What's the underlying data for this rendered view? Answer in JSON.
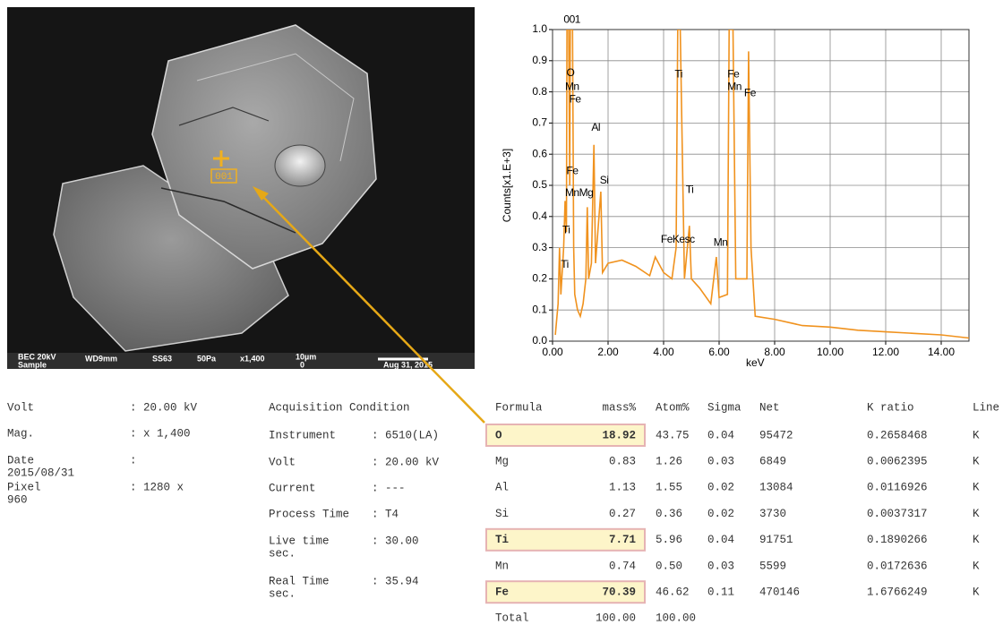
{
  "sem_image": {
    "marker_label": "001",
    "info_bar": [
      "BEC 20kV",
      "Sample",
      "WD9mm",
      "SS63",
      "50Pa",
      "x1,400",
      "10µm",
      "0",
      "Aug 31, 2015"
    ]
  },
  "chart_data": {
    "type": "line",
    "xlabel": "keV",
    "ylabel": "Counts[x1.E+3]",
    "color": "#f0921e",
    "grid": true,
    "xlim": [
      0,
      15
    ],
    "ylim": [
      0,
      1.0
    ],
    "xticks": [
      {
        "value": 0,
        "label": "0.00"
      },
      {
        "value": 2,
        "label": "2.00"
      },
      {
        "value": 4,
        "label": "4.00"
      },
      {
        "value": 6,
        "label": "6.00"
      },
      {
        "value": 8,
        "label": "8.00"
      },
      {
        "value": 10,
        "label": "10.00"
      },
      {
        "value": 12,
        "label": "12.00"
      },
      {
        "value": 14,
        "label": "14.00"
      }
    ],
    "yticks": [
      {
        "value": 0,
        "label": "0.0"
      },
      0.1,
      0.2,
      0.3,
      0.4,
      0.5,
      0.6,
      0.7,
      0.8,
      0.9,
      {
        "value": 1.0,
        "label": "1.0"
      }
    ],
    "x": [
      0.1,
      0.2,
      0.25,
      0.3,
      0.4,
      0.45,
      0.5,
      0.52,
      0.58,
      0.62,
      0.64,
      0.72,
      0.76,
      0.8,
      0.9,
      1.0,
      1.1,
      1.2,
      1.25,
      1.3,
      1.4,
      1.49,
      1.55,
      1.74,
      1.8,
      2.0,
      2.5,
      3.0,
      3.5,
      3.7,
      4.0,
      4.3,
      4.45,
      4.51,
      4.6,
      4.75,
      4.93,
      5.0,
      5.3,
      5.7,
      5.9,
      6.0,
      6.3,
      6.36,
      6.5,
      6.6,
      7.0,
      7.06,
      7.15,
      7.3,
      8.0,
      9.0,
      10.0,
      11.0,
      12.0,
      13.0,
      14.0,
      15.0
    ],
    "values": [
      0.02,
      0.12,
      0.3,
      0.15,
      0.3,
      0.45,
      0.35,
      1.0,
      1.0,
      0.5,
      1.0,
      1.0,
      0.3,
      0.15,
      0.1,
      0.08,
      0.12,
      0.2,
      0.43,
      0.2,
      0.25,
      0.63,
      0.25,
      0.48,
      0.22,
      0.25,
      0.26,
      0.24,
      0.21,
      0.27,
      0.22,
      0.2,
      0.3,
      1.0,
      1.0,
      0.2,
      0.37,
      0.2,
      0.17,
      0.12,
      0.27,
      0.14,
      0.15,
      1.0,
      1.0,
      0.2,
      0.2,
      0.93,
      0.3,
      0.08,
      0.07,
      0.05,
      0.045,
      0.035,
      0.03,
      0.025,
      0.02,
      0.01
    ],
    "annotations": [
      {
        "text": "001",
        "x": 0.4,
        "y": 1.03
      },
      {
        "text": "O",
        "x": 0.5,
        "y": 0.86
      },
      {
        "text": "Mn",
        "x": 0.45,
        "y": 0.815
      },
      {
        "text": "Fe",
        "x": 0.6,
        "y": 0.775
      },
      {
        "text": "Al",
        "x": 1.4,
        "y": 0.685
      },
      {
        "text": "Fe",
        "x": 0.5,
        "y": 0.545
      },
      {
        "text": "Si",
        "x": 1.7,
        "y": 0.515
      },
      {
        "text": "MnMg",
        "x": 0.45,
        "y": 0.475
      },
      {
        "text": "Ti",
        "x": 0.35,
        "y": 0.355
      },
      {
        "text": "Ti",
        "x": 0.3,
        "y": 0.245
      },
      {
        "text": "Ti",
        "x": 4.4,
        "y": 0.855
      },
      {
        "text": "Ti",
        "x": 4.8,
        "y": 0.485
      },
      {
        "text": "Fe",
        "x": 6.3,
        "y": 0.855
      },
      {
        "text": "Mn",
        "x": 6.3,
        "y": 0.815
      },
      {
        "text": "Fe",
        "x": 6.9,
        "y": 0.795
      },
      {
        "text": "FeKesc",
        "x": 3.9,
        "y": 0.325
      },
      {
        "text": "Mn",
        "x": 5.8,
        "y": 0.315
      }
    ]
  },
  "settings_table": {
    "rows": [
      [
        "Volt",
        ": 20.00 kV"
      ],
      [
        "Mag.",
        ": x 1,400"
      ],
      [
        "Date",
        ":"
      ],
      [
        "2015/08/31",
        ""
      ],
      [
        "Pixel",
        ": 1280 x"
      ],
      [
        "960",
        ""
      ]
    ]
  },
  "condition_table": {
    "title": "Acquisition Condition",
    "rows": [
      [
        "Instrument",
        ": 6510(LA)"
      ],
      [
        "Volt",
        ": 20.00 kV"
      ],
      [
        "Current",
        ": ---"
      ],
      [
        "Process Time",
        ": T4"
      ],
      [
        "Live time",
        ": 30.00"
      ],
      [
        "sec.",
        ""
      ],
      [
        "Real Time",
        ": 35.94"
      ],
      [
        "sec.",
        ""
      ]
    ]
  },
  "results_table": {
    "header": [
      "Formula",
      "mass%",
      "Atom%",
      "Sigma",
      "Net",
      "K ratio",
      "Line"
    ],
    "rows": [
      {
        "cells": [
          "O",
          "18.92",
          "43.75",
          "0.04",
          "95472",
          "0.2658468",
          "K"
        ],
        "highlight": true
      },
      {
        "cells": [
          "Mg",
          "0.83",
          "1.26",
          "0.03",
          "6849",
          "0.0062395",
          "K"
        ],
        "highlight": false
      },
      {
        "cells": [
          "Al",
          "1.13",
          "1.55",
          "0.02",
          "13084",
          "0.0116926",
          "K"
        ],
        "highlight": false
      },
      {
        "cells": [
          "Si",
          "0.27",
          "0.36",
          "0.02",
          "3730",
          "0.0037317",
          "K"
        ],
        "highlight": false
      },
      {
        "cells": [
          "Ti",
          "7.71",
          "5.96",
          "0.04",
          "91751",
          "0.1890266",
          "K"
        ],
        "highlight": true
      },
      {
        "cells": [
          "Mn",
          "0.74",
          "0.50",
          "0.03",
          "5599",
          "0.0172636",
          "K"
        ],
        "highlight": false
      },
      {
        "cells": [
          "Fe",
          "70.39",
          "46.62",
          "0.11",
          "470146",
          "1.6766249",
          "K"
        ],
        "highlight": true
      },
      {
        "cells": [
          "Total",
          "100.00",
          "100.00"
        ],
        "highlight": false
      }
    ]
  }
}
